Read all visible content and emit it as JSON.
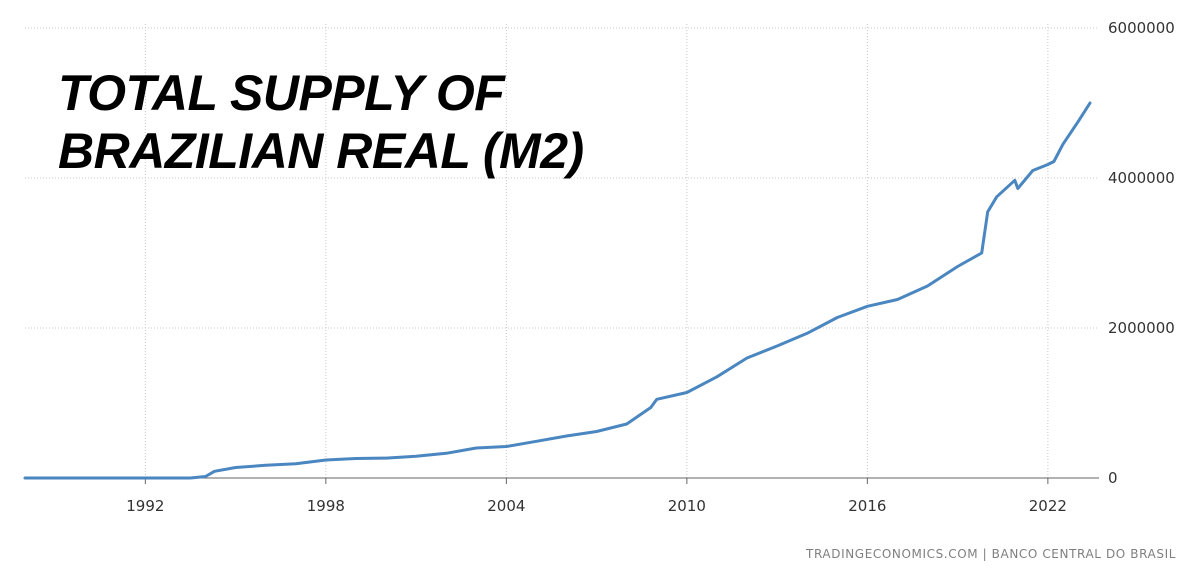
{
  "chart_data": {
    "type": "line",
    "title_lines": [
      "TOTAL SUPPLY OF",
      "BRAZILIAN REAL (M2)"
    ],
    "source": "TRADINGECONOMICS.COM  |  BANCO CENTRAL DO BRASIL",
    "xlim": [
      1988,
      2023.5
    ],
    "ylim": [
      0,
      6000000
    ],
    "x_ticks": [
      1992,
      1998,
      2004,
      2010,
      2016,
      2022
    ],
    "x_tick_labels": [
      "1992",
      "1998",
      "2004",
      "2010",
      "2016",
      "2022"
    ],
    "y_ticks": [
      0,
      2000000,
      4000000,
      6000000
    ],
    "y_tick_labels": [
      "0",
      "2000000",
      "4000000",
      "6000000"
    ],
    "grid": true,
    "line_color": "#4a86c0",
    "series": [
      {
        "x": [
          1988,
          1993.5,
          1994,
          1994.3,
          1995,
          1996,
          1997,
          1998,
          1999,
          2000,
          2001,
          2002,
          2003,
          2004,
          2005,
          2006,
          2007,
          2008,
          2008.8,
          2009,
          2010,
          2011,
          2012,
          2013,
          2014,
          2015,
          2016,
          2017,
          2018,
          2019,
          2019.8,
          2020,
          2020.3,
          2020.9,
          2021,
          2021.5,
          2022,
          2022.2,
          2022.5,
          2023,
          2023.4
        ],
        "y": [
          0,
          0,
          20000,
          90000,
          140000,
          170000,
          190000,
          240000,
          260000,
          265000,
          290000,
          330000,
          400000,
          420000,
          490000,
          560000,
          620000,
          720000,
          940000,
          1050000,
          1140000,
          1350000,
          1600000,
          1760000,
          1930000,
          2140000,
          2290000,
          2380000,
          2560000,
          2820000,
          3000000,
          3550000,
          3750000,
          3970000,
          3860000,
          4100000,
          4180000,
          4220000,
          4450000,
          4750000,
          5000000
        ]
      }
    ]
  }
}
